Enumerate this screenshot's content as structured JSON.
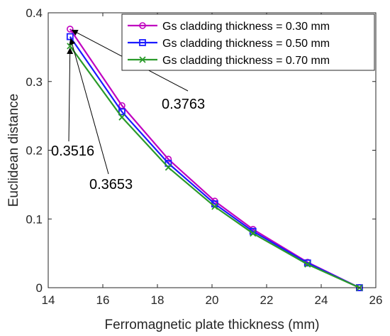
{
  "chart_data": {
    "type": "line",
    "xlabel": "Ferromagnetic plate thickness (mm)",
    "ylabel": "Euclidean distance",
    "xlim": [
      14,
      26
    ],
    "ylim": [
      0,
      0.4
    ],
    "xticks": [
      "14",
      "16",
      "18",
      "20",
      "22",
      "24",
      "26"
    ],
    "yticks": [
      "0",
      "0.1",
      "0.2",
      "0.3",
      "0.4"
    ],
    "grid": false,
    "legend_position": "top-right",
    "series": [
      {
        "name": "Gs cladding thickness = 0.30 mm",
        "color": "#c000c0",
        "marker": "circle",
        "x": [
          14.8,
          16.7,
          18.4,
          20.1,
          21.5,
          23.5,
          25.4
        ],
        "y": [
          0.3763,
          0.265,
          0.187,
          0.126,
          0.085,
          0.037,
          0.0
        ]
      },
      {
        "name": "Gs cladding thickness = 0.50 mm",
        "color": "#1a1aff",
        "marker": "square",
        "x": [
          14.8,
          16.7,
          18.4,
          20.1,
          21.5,
          23.5,
          25.4
        ],
        "y": [
          0.3653,
          0.256,
          0.181,
          0.122,
          0.082,
          0.036,
          0.0
        ]
      },
      {
        "name": "Gs cladding thickness = 0.70 mm",
        "color": "#2a9a2a",
        "marker": "x",
        "x": [
          14.8,
          16.7,
          18.4,
          20.1,
          21.5,
          23.5,
          25.4
        ],
        "y": [
          0.3516,
          0.248,
          0.175,
          0.118,
          0.079,
          0.034,
          0.0
        ]
      }
    ],
    "annotations": [
      {
        "text": "0.3763",
        "target": [
          14.8,
          0.3763
        ]
      },
      {
        "text": "0.3653",
        "target": [
          14.8,
          0.3653
        ]
      },
      {
        "text": "0.3516",
        "target": [
          14.8,
          0.3516
        ]
      }
    ]
  }
}
